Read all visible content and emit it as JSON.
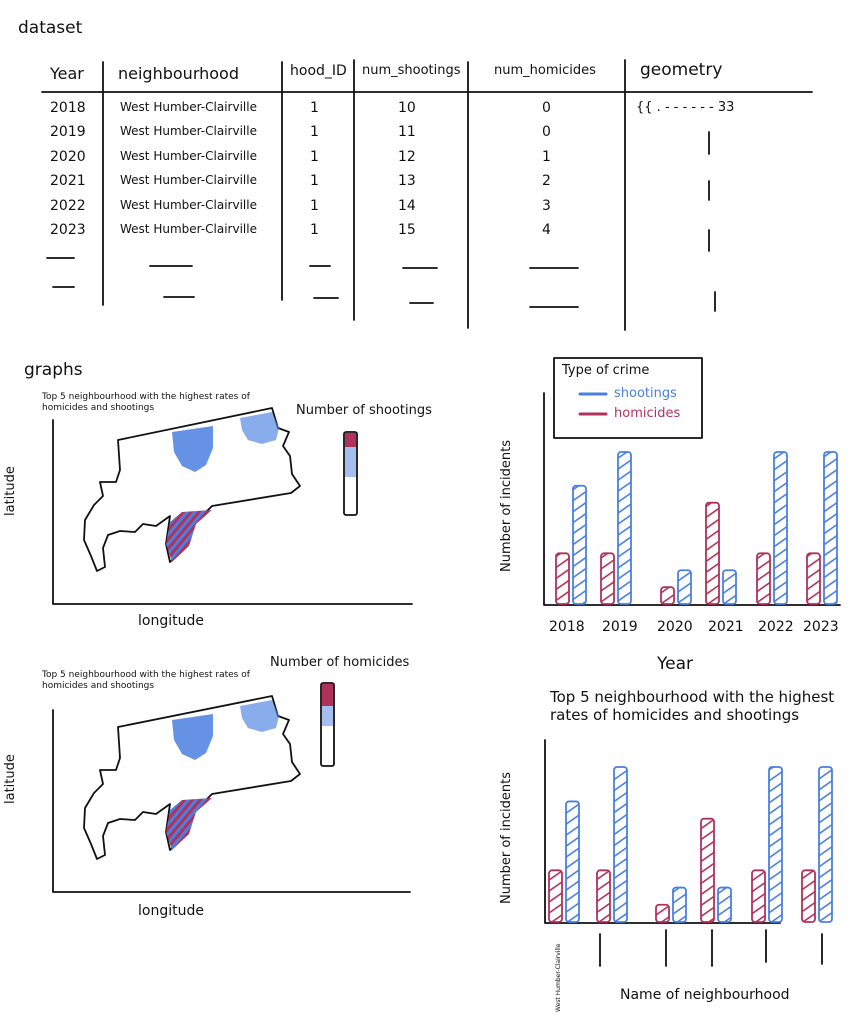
{
  "dataset": {
    "label": "dataset",
    "columns": [
      "Year",
      "neighbourhood",
      "hood_ID",
      "num_shootings",
      "num_homicides",
      "geometry"
    ],
    "rows": [
      {
        "year": "2018",
        "neighbourhood": "West Humber-Clairville",
        "hood_id": "1",
        "shootings": "10",
        "homicides": "0",
        "geometry": "{{ . - - - - - - 33"
      },
      {
        "year": "2019",
        "neighbourhood": "West Humber-Clairville",
        "hood_id": "1",
        "shootings": "11",
        "homicides": "0",
        "geometry": ""
      },
      {
        "year": "2020",
        "neighbourhood": "West Humber-Clairville",
        "hood_id": "1",
        "shootings": "12",
        "homicides": "1",
        "geometry": ""
      },
      {
        "year": "2021",
        "neighbourhood": "West Humber-Clairville",
        "hood_id": "1",
        "shootings": "13",
        "homicides": "2",
        "geometry": ""
      },
      {
        "year": "2022",
        "neighbourhood": "West Humber-Clairville",
        "hood_id": "1",
        "shootings": "14",
        "homicides": "3",
        "geometry": ""
      },
      {
        "year": "2023",
        "neighbourhood": "West Humber-Clairville",
        "hood_id": "1",
        "shootings": "15",
        "homicides": "4",
        "geometry": ""
      }
    ]
  },
  "graphs_label": "graphs",
  "maps": [
    {
      "title": "Top 5 neighbourhood with the highest rates of homicides and shootings",
      "legend_title": "Number of shootings",
      "xlabel": "longitude",
      "ylabel": "latitude"
    },
    {
      "title": "Top 5 neighbourhood with the highest rates of homicides and shootings",
      "legend_title": "Number of homicides",
      "xlabel": "longitude",
      "ylabel": "latitude"
    }
  ],
  "colors": {
    "shootings": "#4a7fe0",
    "homicides": "#b0325a",
    "ink": "#111111"
  },
  "chart_data": [
    {
      "type": "bar",
      "title": "",
      "xlabel": "Year",
      "ylabel": "Number of incidents",
      "categories": [
        "2018",
        "2019",
        "2020",
        "2021",
        "2022",
        "2023"
      ],
      "legend": {
        "title": "Type of crime",
        "placement": "top-left"
      },
      "series": [
        {
          "name": "homicides",
          "values": [
            3,
            3,
            1,
            6,
            3,
            3
          ]
        },
        {
          "name": "shootings",
          "values": [
            7,
            9,
            2,
            2,
            9,
            9
          ]
        }
      ]
    },
    {
      "type": "bar",
      "title": "Top 5 neighbourhood with the highest rates of homicides and shootings",
      "xlabel": "Name of neighbourhood",
      "ylabel": "Number of incidents",
      "categories": [
        "West Humber-Clairville",
        "|",
        "|",
        "|",
        "|",
        "|"
      ],
      "series": [
        {
          "name": "homicides",
          "values": [
            3,
            3,
            1,
            6,
            3,
            3
          ]
        },
        {
          "name": "shootings",
          "values": [
            7,
            9,
            2,
            2,
            9,
            9
          ]
        }
      ]
    }
  ]
}
